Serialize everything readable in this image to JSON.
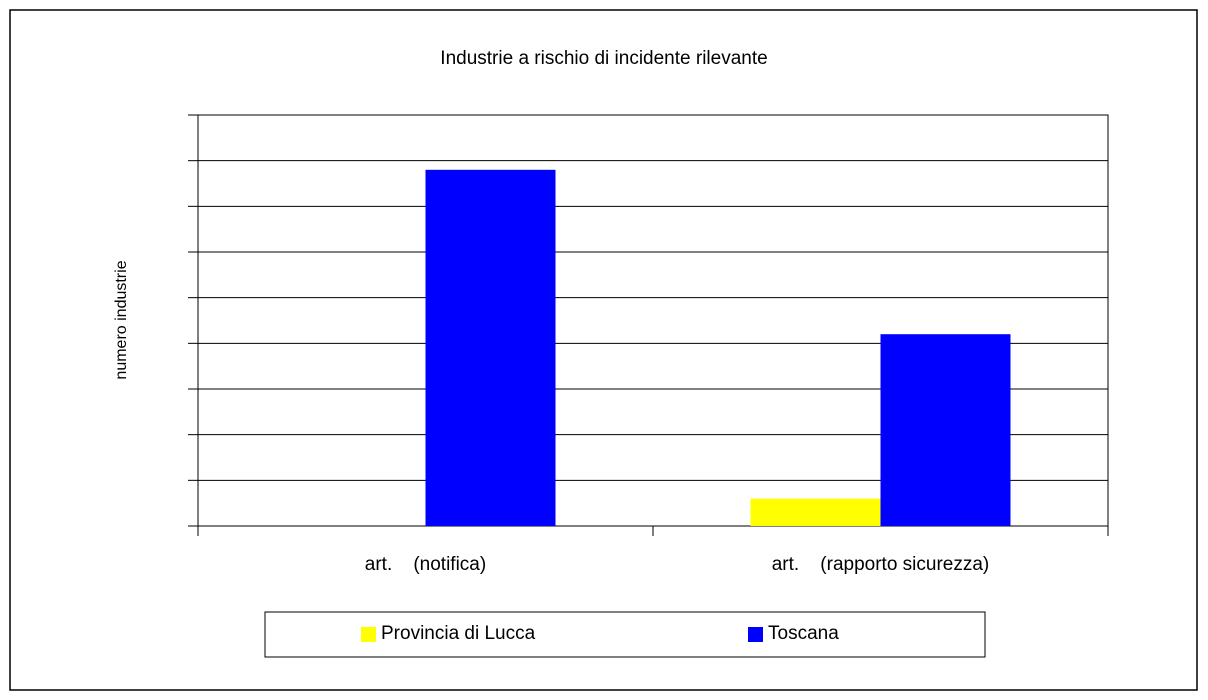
{
  "chart_data": {
    "type": "bar",
    "title": "Industrie a rischio di incidente rilevante",
    "y_label": "numero industrie",
    "categories": [
      "art.    (notifica)",
      "art.    (rapporto sicurezza)"
    ],
    "series": [
      {
        "name": "Provincia di Lucca",
        "color": "#ffff00",
        "values": [
          0,
          0.6
        ]
      },
      {
        "name": "Toscana",
        "color": "#0000ff",
        "values": [
          7.8,
          4.2
        ]
      }
    ],
    "ylim": [
      0,
      9
    ],
    "yticks": [
      0,
      1,
      2,
      3,
      4,
      5,
      6,
      7,
      8,
      9
    ],
    "grid": true,
    "legend": "bottom"
  }
}
